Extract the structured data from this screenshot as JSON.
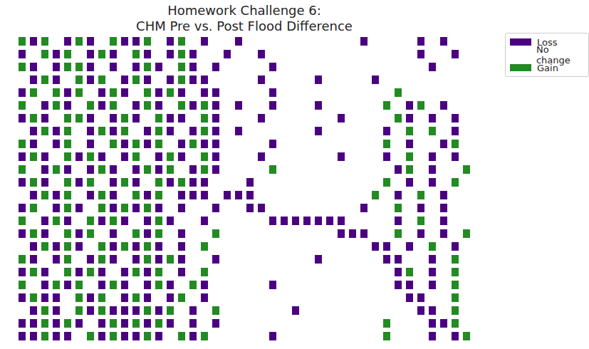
{
  "chart_data": {
    "type": "raster",
    "title": "Homework Challenge 6:\nCHM Pre vs. Post Flood Difference",
    "categories": [
      "Loss",
      "No change",
      "Gain"
    ],
    "values": [
      -1,
      0,
      1
    ],
    "colors": [
      "#4b0082",
      "#ffffff",
      "#228b22"
    ],
    "legend": "right",
    "tick_labels": false,
    "cells": [
      [
        1,
        -1,
        1,
        0,
        -1,
        1,
        -1,
        0,
        1,
        -1,
        -1,
        1,
        0,
        -1,
        1,
        0,
        -1,
        0,
        0,
        -1,
        0,
        0,
        0,
        0,
        0,
        0,
        0,
        0,
        0,
        0,
        -1,
        0,
        0,
        0,
        0,
        -1,
        0,
        -1,
        0,
        0
      ],
      [
        -1,
        0,
        1,
        -1,
        1,
        0,
        -1,
        1,
        -1,
        0,
        1,
        -1,
        0,
        -1,
        1,
        -1,
        0,
        0,
        -1,
        0,
        0,
        -1,
        0,
        0,
        0,
        0,
        0,
        0,
        0,
        0,
        0,
        0,
        0,
        0,
        0,
        -1,
        0,
        0,
        -1,
        0
      ],
      [
        1,
        -1,
        0,
        -1,
        1,
        1,
        -1,
        0,
        -1,
        0,
        -1,
        1,
        -1,
        0,
        1,
        -1,
        0,
        -1,
        0,
        0,
        0,
        0,
        -1,
        0,
        0,
        0,
        0,
        0,
        0,
        0,
        0,
        0,
        0,
        0,
        0,
        0,
        -1,
        0,
        0,
        0
      ],
      [
        0,
        -1,
        1,
        -1,
        0,
        1,
        -1,
        1,
        0,
        -1,
        1,
        -1,
        0,
        -1,
        1,
        -1,
        -1,
        0,
        0,
        0,
        0,
        -1,
        0,
        0,
        0,
        0,
        -1,
        0,
        0,
        0,
        0,
        -1,
        0,
        0,
        0,
        0,
        0,
        0,
        0,
        0
      ],
      [
        -1,
        1,
        0,
        1,
        -1,
        1,
        0,
        -1,
        1,
        -1,
        0,
        1,
        -1,
        1,
        -1,
        0,
        -1,
        -1,
        0,
        0,
        0,
        0,
        -1,
        0,
        0,
        0,
        0,
        0,
        0,
        0,
        0,
        0,
        0,
        1,
        0,
        0,
        0,
        0,
        0,
        0
      ],
      [
        1,
        0,
        -1,
        1,
        -1,
        0,
        1,
        -1,
        1,
        0,
        -1,
        1,
        -1,
        0,
        1,
        -1,
        1,
        -1,
        0,
        -1,
        0,
        0,
        -1,
        0,
        0,
        0,
        -1,
        0,
        0,
        0,
        0,
        0,
        1,
        0,
        -1,
        1,
        0,
        -1,
        0,
        0
      ],
      [
        -1,
        1,
        -1,
        0,
        1,
        1,
        -1,
        0,
        -1,
        1,
        -1,
        0,
        1,
        -1,
        -1,
        0,
        1,
        -1,
        0,
        0,
        0,
        -1,
        0,
        0,
        0,
        0,
        0,
        0,
        -1,
        0,
        0,
        0,
        0,
        1,
        -1,
        0,
        -1,
        0,
        -1,
        0
      ],
      [
        0,
        -1,
        1,
        -1,
        1,
        0,
        -1,
        1,
        -1,
        1,
        0,
        -1,
        1,
        -1,
        0,
        -1,
        1,
        -1,
        0,
        -1,
        0,
        0,
        0,
        0,
        0,
        0,
        -1,
        0,
        0,
        0,
        0,
        0,
        -1,
        0,
        1,
        0,
        1,
        0,
        -1,
        0
      ],
      [
        1,
        -1,
        0,
        -1,
        1,
        0,
        -1,
        0,
        1,
        -1,
        1,
        -1,
        1,
        0,
        -1,
        1,
        -1,
        -1,
        0,
        0,
        0,
        0,
        -1,
        0,
        0,
        0,
        0,
        0,
        0,
        0,
        0,
        0,
        1,
        0,
        -1,
        0,
        0,
        -1,
        1,
        0
      ],
      [
        -1,
        1,
        -1,
        0,
        1,
        -1,
        1,
        -1,
        0,
        -1,
        1,
        0,
        -1,
        1,
        -1,
        0,
        1,
        -1,
        0,
        0,
        0,
        -1,
        0,
        0,
        0,
        0,
        0,
        0,
        -1,
        0,
        0,
        0,
        -1,
        0,
        1,
        0,
        -1,
        0,
        -1,
        0
      ],
      [
        1,
        0,
        -1,
        1,
        -1,
        0,
        -1,
        1,
        -1,
        0,
        -1,
        1,
        -1,
        1,
        0,
        -1,
        1,
        -1,
        0,
        0,
        0,
        0,
        1,
        0,
        0,
        0,
        0,
        0,
        0,
        0,
        0,
        0,
        0,
        -1,
        1,
        0,
        -1,
        0,
        0,
        1
      ],
      [
        -1,
        1,
        -1,
        0,
        1,
        -1,
        1,
        0,
        -1,
        1,
        -1,
        0,
        1,
        -1,
        1,
        -1,
        -1,
        0,
        0,
        0,
        -1,
        0,
        0,
        0,
        0,
        0,
        0,
        0,
        0,
        0,
        0,
        0,
        1,
        0,
        -1,
        0,
        -1,
        0,
        1,
        0
      ],
      [
        0,
        -1,
        1,
        -1,
        1,
        0,
        -1,
        1,
        -1,
        0,
        1,
        -1,
        1,
        0,
        -1,
        -1,
        -1,
        0,
        -1,
        -1,
        -1,
        0,
        0,
        0,
        0,
        0,
        0,
        0,
        0,
        0,
        0,
        1,
        0,
        -1,
        0,
        1,
        0,
        -1,
        0,
        0
      ],
      [
        -1,
        1,
        0,
        -1,
        1,
        -1,
        0,
        1,
        -1,
        1,
        -1,
        1,
        -1,
        0,
        -1,
        0,
        0,
        -1,
        0,
        0,
        -1,
        -1,
        0,
        0,
        0,
        0,
        0,
        0,
        0,
        0,
        -1,
        0,
        0,
        1,
        0,
        -1,
        0,
        -1,
        0,
        0
      ],
      [
        1,
        0,
        -1,
        1,
        -1,
        0,
        1,
        -1,
        1,
        -1,
        0,
        -1,
        1,
        -1,
        0,
        0,
        -1,
        0,
        0,
        0,
        0,
        0,
        -1,
        -1,
        -1,
        -1,
        -1,
        -1,
        -1,
        0,
        0,
        0,
        0,
        -1,
        0,
        1,
        0,
        -1,
        0,
        0
      ],
      [
        -1,
        1,
        -1,
        0,
        1,
        -1,
        1,
        0,
        -1,
        0,
        1,
        -1,
        1,
        0,
        -1,
        0,
        0,
        1,
        0,
        0,
        0,
        0,
        0,
        0,
        0,
        0,
        0,
        0,
        -1,
        -1,
        -1,
        0,
        0,
        1,
        0,
        -1,
        0,
        -1,
        0,
        1
      ],
      [
        0,
        -1,
        1,
        -1,
        1,
        -1,
        0,
        1,
        -1,
        1,
        -1,
        1,
        -1,
        0,
        -1,
        0,
        1,
        0,
        0,
        0,
        0,
        0,
        0,
        0,
        0,
        0,
        0,
        0,
        0,
        0,
        0,
        -1,
        -1,
        0,
        -1,
        0,
        1,
        0,
        -1,
        0
      ],
      [
        1,
        -1,
        0,
        -1,
        1,
        0,
        -1,
        1,
        -1,
        0,
        -1,
        1,
        -1,
        1,
        -1,
        0,
        0,
        -1,
        0,
        0,
        0,
        0,
        0,
        0,
        0,
        0,
        -1,
        0,
        0,
        0,
        0,
        0,
        -1,
        -1,
        0,
        0,
        -1,
        0,
        1,
        0
      ],
      [
        -1,
        1,
        -1,
        0,
        1,
        -1,
        1,
        -1,
        0,
        -1,
        1,
        -1,
        1,
        0,
        -1,
        0,
        1,
        0,
        0,
        0,
        0,
        0,
        0,
        0,
        0,
        0,
        0,
        0,
        0,
        0,
        0,
        0,
        0,
        -1,
        1,
        0,
        -1,
        0,
        1,
        0
      ],
      [
        1,
        0,
        -1,
        1,
        -1,
        1,
        0,
        -1,
        1,
        -1,
        0,
        -1,
        1,
        -1,
        0,
        1,
        -1,
        0,
        0,
        0,
        0,
        0,
        -1,
        0,
        0,
        0,
        0,
        0,
        0,
        0,
        0,
        0,
        0,
        -1,
        -1,
        0,
        -1,
        0,
        1,
        0
      ],
      [
        -1,
        1,
        -1,
        -1,
        0,
        1,
        -1,
        1,
        0,
        -1,
        1,
        -1,
        0,
        -1,
        1,
        0,
        -1,
        0,
        0,
        0,
        0,
        0,
        0,
        0,
        0,
        0,
        0,
        0,
        0,
        0,
        0,
        0,
        0,
        0,
        -1,
        -1,
        0,
        0,
        1,
        0
      ],
      [
        0,
        -1,
        1,
        -1,
        0,
        1,
        -1,
        1,
        -1,
        -1,
        -1,
        1,
        -1,
        1,
        0,
        -1,
        0,
        1,
        0,
        0,
        0,
        0,
        0,
        0,
        -1,
        0,
        0,
        0,
        0,
        0,
        0,
        0,
        0,
        0,
        0,
        -1,
        -1,
        0,
        1,
        0
      ],
      [
        -1,
        -1,
        1,
        -1,
        1,
        -1,
        0,
        -1,
        1,
        -1,
        1,
        -1,
        1,
        -1,
        0,
        -1,
        0,
        -1,
        0,
        0,
        0,
        0,
        0,
        0,
        0,
        0,
        0,
        0,
        0,
        0,
        0,
        0,
        1,
        0,
        0,
        0,
        -1,
        -1,
        1,
        0
      ],
      [
        -1,
        -1,
        1,
        -1,
        -1,
        0,
        1,
        -1,
        1,
        -1,
        -1,
        1,
        -1,
        0,
        1,
        -1,
        1,
        0,
        0,
        0,
        0,
        0,
        -1,
        0,
        0,
        0,
        0,
        0,
        0,
        0,
        0,
        0,
        1,
        0,
        0,
        0,
        -1,
        0,
        -1,
        1
      ]
    ]
  }
}
